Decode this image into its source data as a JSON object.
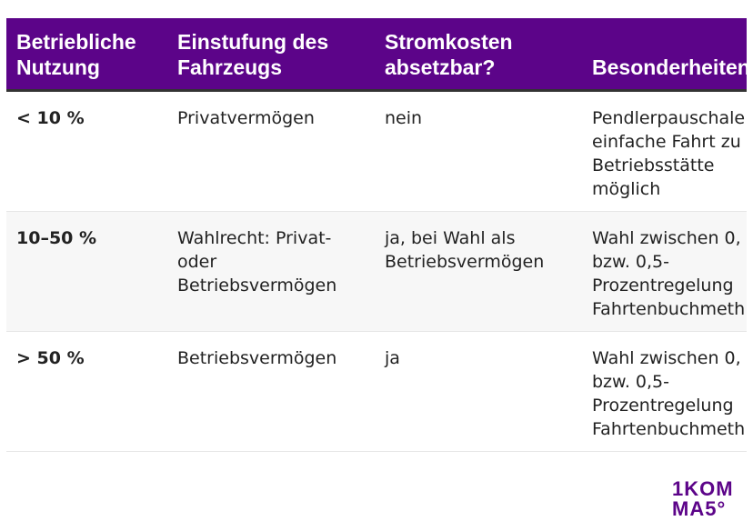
{
  "table": {
    "headers": [
      "Betriebliche\nNutzung",
      "Einstufung des\nFahrzeugs",
      "Stromkosten\nabsetzbar?",
      "Besonderheiten"
    ],
    "rows": [
      {
        "usage": "< 10 %",
        "classification": "Privatvermögen",
        "deductible": "nein",
        "notes": [
          "Pendlerpauschale",
          "einfache Fahrt zu",
          "Betriebsstätte",
          "möglich"
        ]
      },
      {
        "usage": "10–50 %",
        "classification": "Wahlrecht: Privat-\noder\nBetriebsvermögen",
        "deductible": "ja, bei Wahl als\nBetriebsvermögen",
        "notes": [
          "Wahl zwischen 0,",
          "bzw. 0,5-",
          "Prozentregelung",
          "Fahrtenbuchmeth"
        ]
      },
      {
        "usage": "> 50 %",
        "classification": "Betriebsvermögen",
        "deductible": "ja",
        "notes": [
          "Wahl zwischen 0,",
          "bzw. 0,5-",
          "Prozentregelung",
          "Fahrtenbuchmeth"
        ]
      }
    ]
  },
  "logo": {
    "line1": "1KOM",
    "line2": "MA5°"
  },
  "colors": {
    "header": "#5c0489",
    "alt_row": "#f7f7f7"
  }
}
